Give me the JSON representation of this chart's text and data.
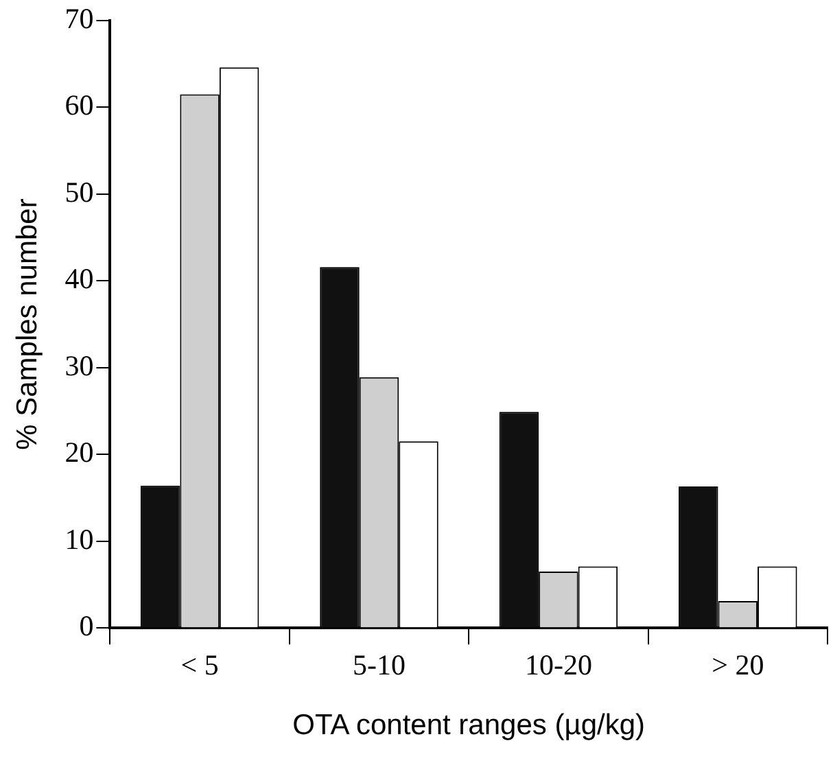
{
  "chart_data": {
    "type": "bar",
    "xlabel": "OTA content ranges (µg/kg)",
    "ylabel": "% Samples number",
    "categories": [
      "< 5",
      "5-10",
      "10-20",
      "> 20"
    ],
    "series": [
      {
        "color": "#111111",
        "values": [
          16.4,
          41.6,
          24.9,
          16.3
        ]
      },
      {
        "color": "#cfcfcf",
        "values": [
          61.5,
          28.9,
          6.5,
          3.1
        ]
      },
      {
        "color": "#ffffff",
        "values": [
          64.6,
          21.5,
          7.1,
          7.1
        ]
      }
    ],
    "ylim": [
      0,
      70
    ],
    "yticks": [
      0,
      10,
      20,
      30,
      40,
      50,
      60,
      70
    ],
    "grid": false,
    "legend": false
  }
}
